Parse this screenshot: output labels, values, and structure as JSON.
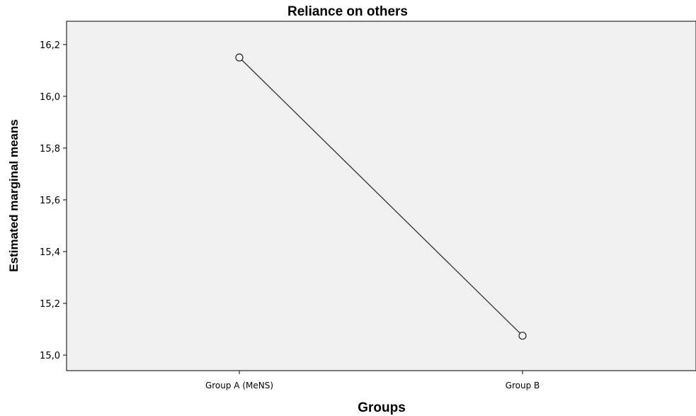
{
  "chart_data": {
    "type": "line",
    "title": "Reliance on others",
    "xlabel": "Groups",
    "ylabel": "Estimated marginal means",
    "categories": [
      "Group A (MeNS)",
      "Group B"
    ],
    "series": [
      {
        "values": [
          16.15,
          15.075
        ]
      }
    ],
    "ylim": [
      14.94,
      16.29
    ],
    "yticks": [
      15.0,
      15.2,
      15.4,
      15.6,
      15.8,
      16.0,
      16.2
    ],
    "ytick_labels": [
      "15,0",
      "15,2",
      "15,4",
      "15,6",
      "15,8",
      "16,0",
      "16,2"
    ],
    "grid": false,
    "colors": {
      "plot_background": "#f0f0f0",
      "line": "#333333",
      "marker_fill": "#f0f0f0",
      "axis": "#000000"
    }
  }
}
